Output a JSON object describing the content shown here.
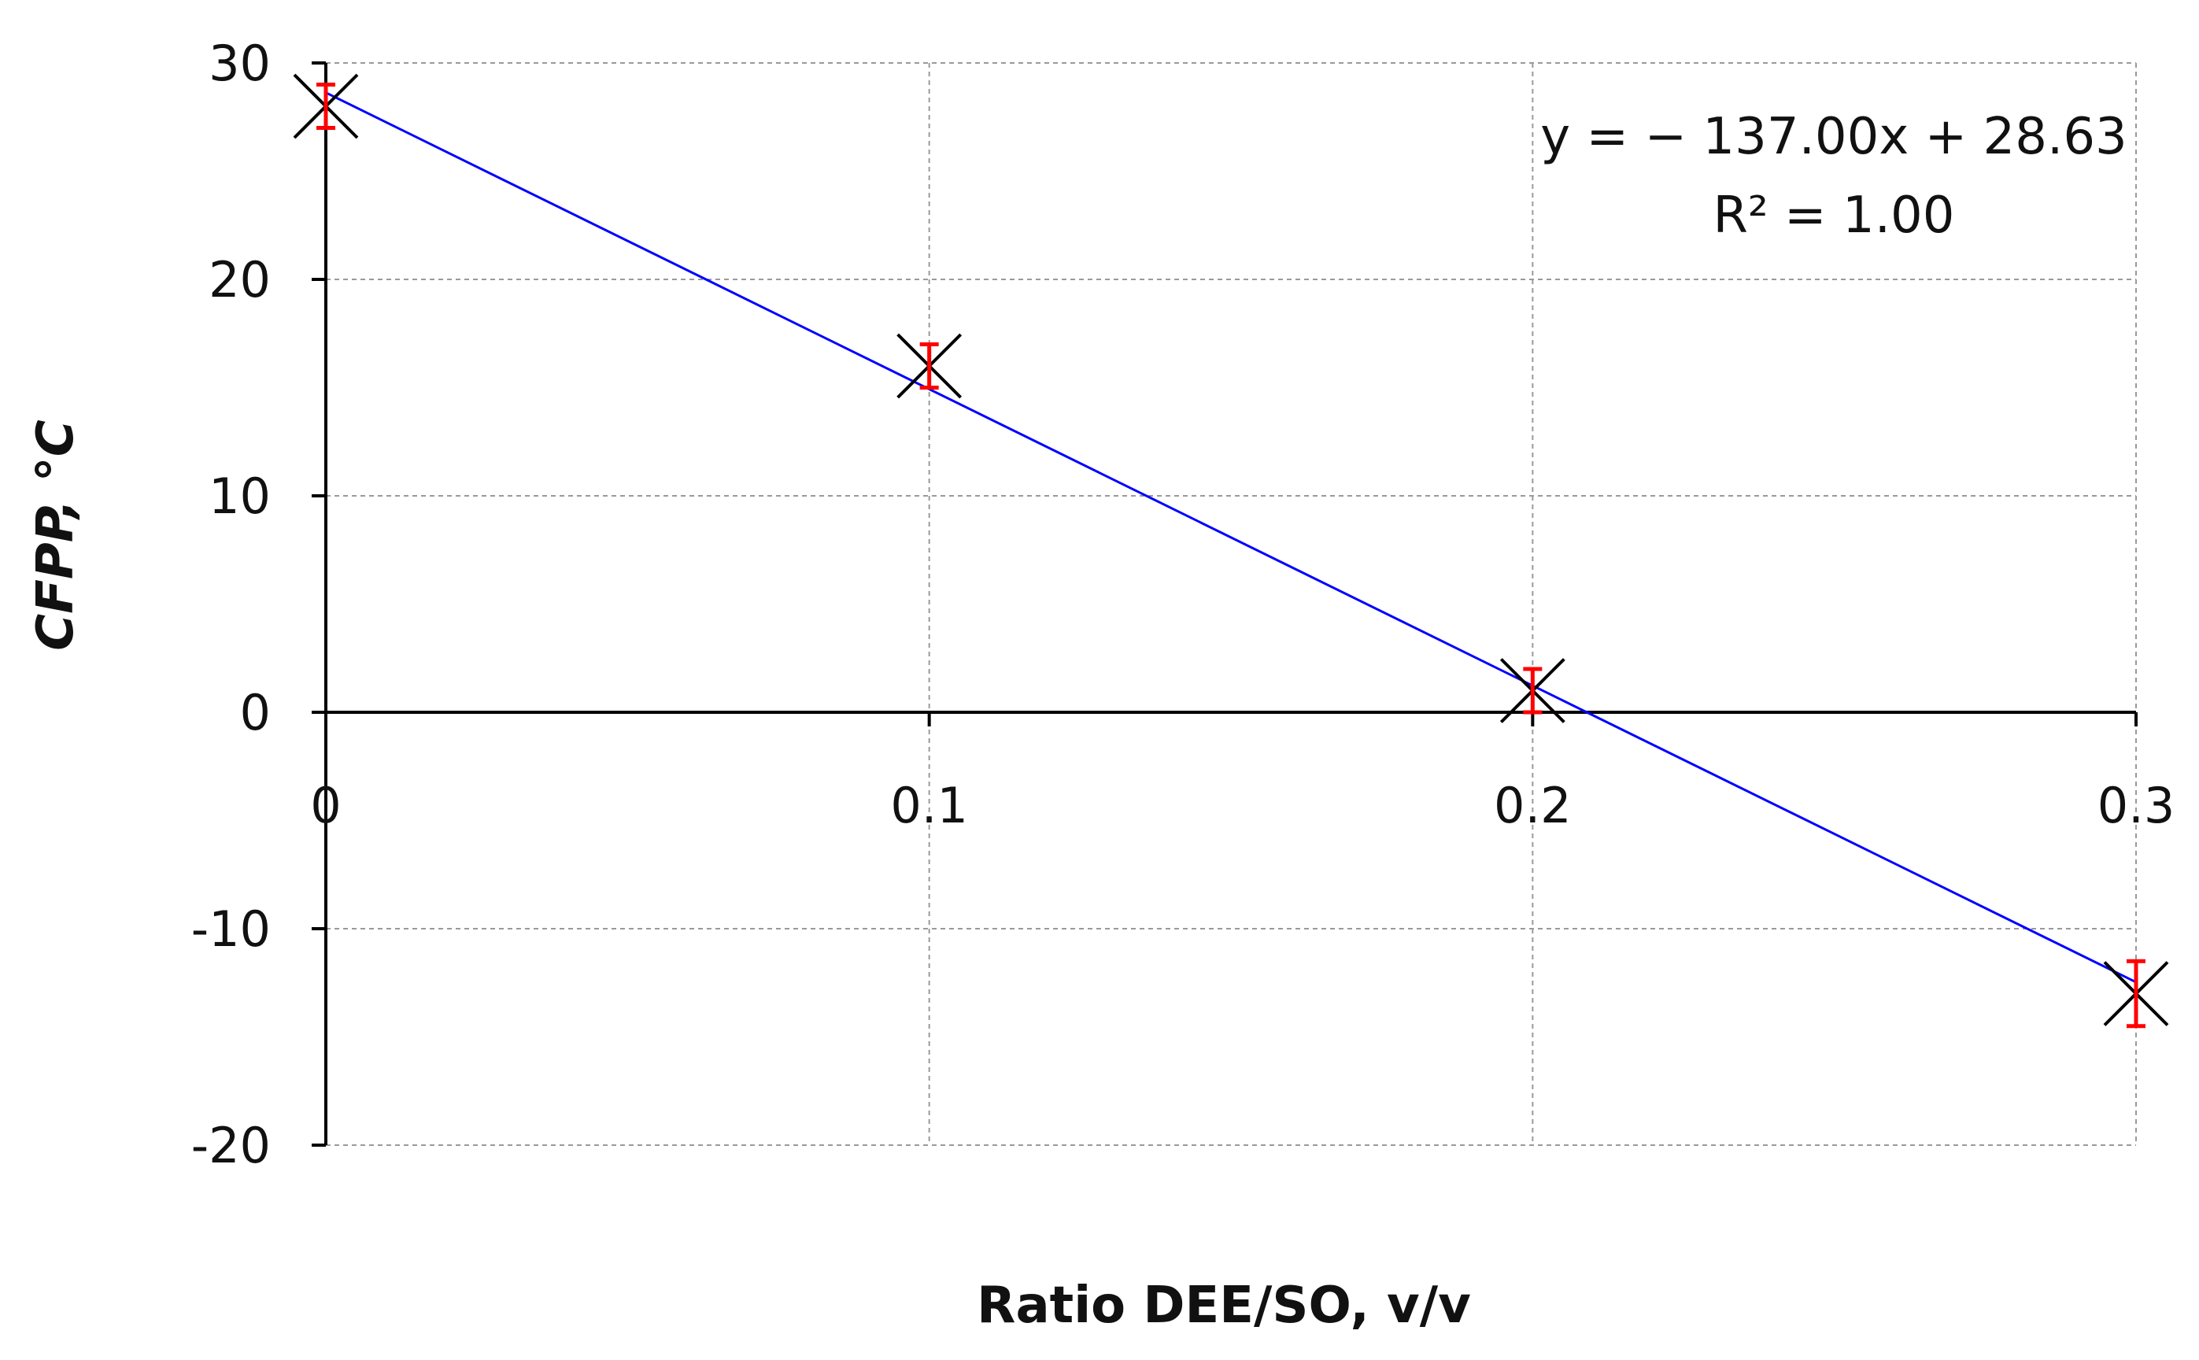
{
  "chart_data": {
    "type": "scatter",
    "xlabel": "Ratio DEE/SO, v/v",
    "ylabel": "CFPP, °C",
    "xlim": [
      0,
      0.3
    ],
    "ylim": [
      -20,
      30
    ],
    "x_ticks": [
      0,
      0.1,
      0.2,
      0.3
    ],
    "x_tick_labels": [
      "0",
      "0.1",
      "0.2",
      "0.3"
    ],
    "y_ticks": [
      -20,
      -10,
      0,
      10,
      20,
      30
    ],
    "y_tick_labels": [
      "-20",
      "-10",
      "0",
      "10",
      "20",
      "30"
    ],
    "grid": true,
    "series": [
      {
        "x": [
          0,
          0.1,
          0.2,
          0.3
        ],
        "y": [
          28,
          16,
          1,
          -13
        ],
        "error": [
          1,
          1,
          1,
          1.5
        ],
        "marker": "x",
        "marker_color": "#000000",
        "error_color": "#ff0000"
      }
    ],
    "trendline": {
      "slope": -137.0,
      "intercept": 28.63,
      "color": "#0000ff",
      "equation": "y = − 137.00x + 28.63",
      "r2_label": "R² = 1.00"
    }
  }
}
